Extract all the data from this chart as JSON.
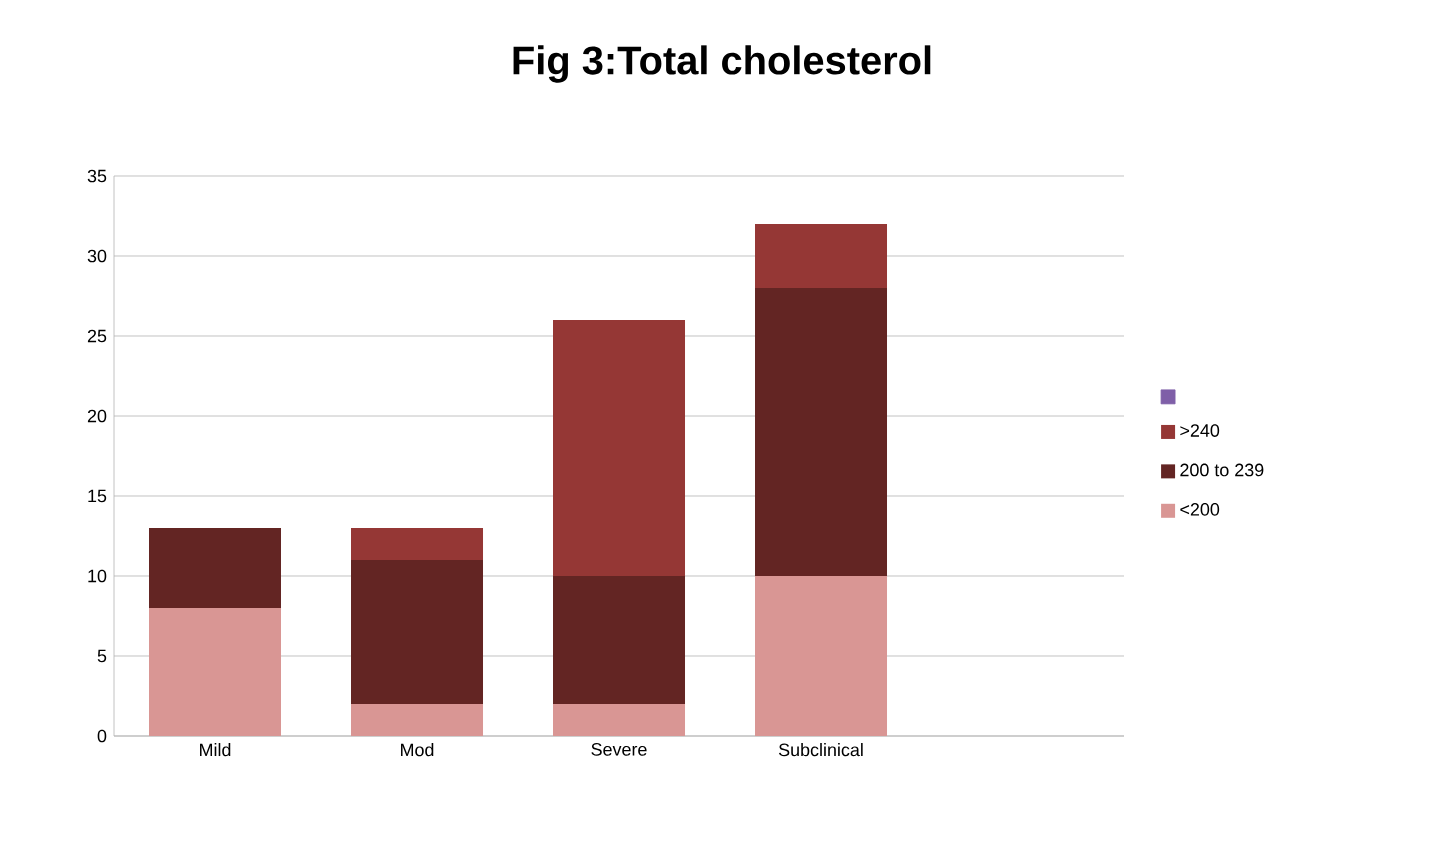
{
  "chart_data": {
    "type": "bar",
    "title": "Fig 3:Total cholesterol",
    "categories": [
      "Mild",
      "Mod",
      "Severe",
      "Subclinical",
      null
    ],
    "stacked": true,
    "series": [
      {
        "name": "<200",
        "color": "#d99694",
        "values": [
          8,
          2,
          2,
          10,
          null
        ]
      },
      {
        "name": "200 to 239",
        "color": "#632523",
        "values": [
          5,
          9,
          8,
          18,
          null
        ]
      },
      {
        "name": ">240",
        "color": "#953735",
        "values": [
          0,
          2,
          16,
          4,
          null
        ]
      },
      {
        "color": "#7f5fa8",
        "values": [
          null,
          null,
          null,
          null,
          null
        ]
      }
    ],
    "ylim": [
      0,
      35
    ],
    "yticks": [
      0,
      5,
      10,
      15,
      20,
      25,
      30,
      35
    ],
    "grid": "y",
    "legend": "right"
  }
}
